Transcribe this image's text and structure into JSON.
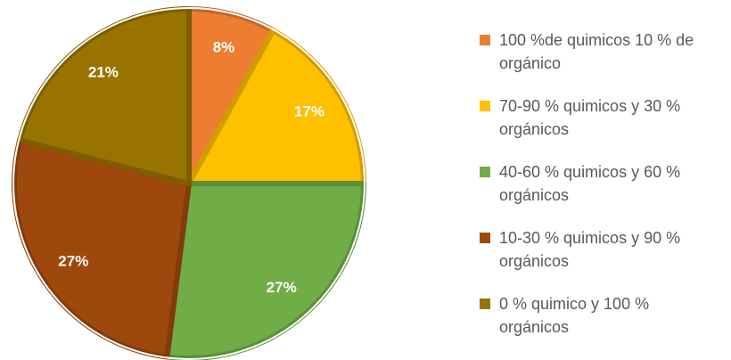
{
  "chart_data": {
    "type": "pie",
    "categories": [
      "100 %de quimicos 10 % de orgánico",
      "70-90 % quimicos y 30 % orgánicos",
      "40-60 % quimicos y 60 % orgánicos",
      "10-30 % quimicos y 90 % orgánicos",
      "0 % quimico y 100 % orgánicos"
    ],
    "values": [
      8,
      17,
      27,
      27,
      21
    ],
    "value_labels": [
      "8%",
      "17%",
      "27%",
      "27%",
      "21%"
    ],
    "colors": [
      "#ed7d31",
      "#ffc000",
      "#70ad47",
      "#9e480e",
      "#997300"
    ],
    "legend": "right"
  }
}
